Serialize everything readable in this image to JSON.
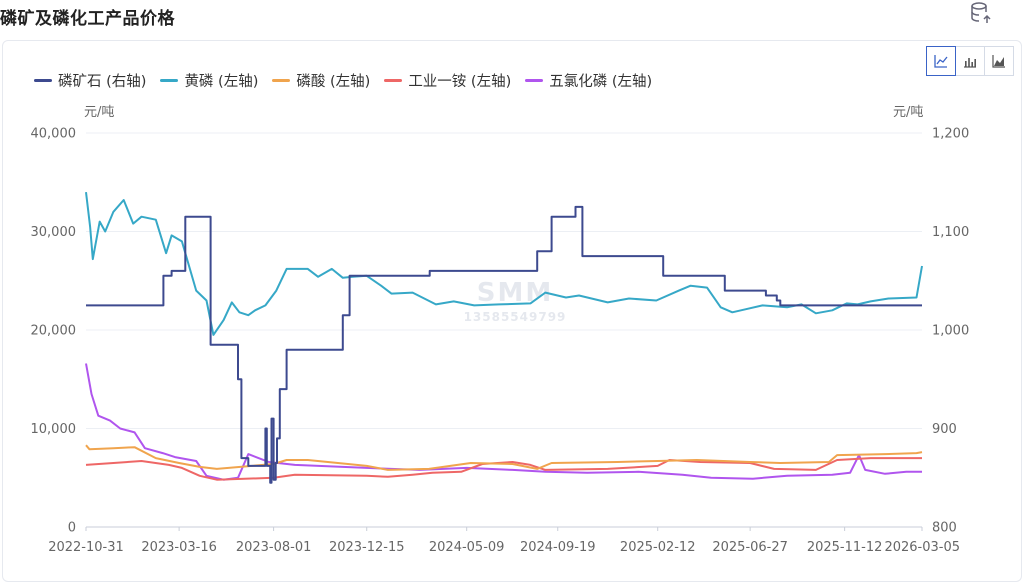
{
  "page": {
    "title": "磷矿及磷化工产品价格"
  },
  "icons": {
    "header": "database-export-icon",
    "view_line": "line-chart-icon",
    "view_bar": "bar-chart-icon",
    "view_area": "area-chart-icon"
  },
  "watermark": {
    "logo": "SMM",
    "number": "13585549799"
  },
  "chart_data": {
    "type": "line",
    "left_unit": "元/吨",
    "right_unit": "元/吨",
    "left_axis": {
      "min": 0,
      "max": 40000,
      "ticks": [
        "0",
        "10,000",
        "20,000",
        "30,000",
        "40,000"
      ]
    },
    "right_axis": {
      "min": 800,
      "max": 1200,
      "ticks": [
        "800",
        "900",
        "1,000",
        "1,100",
        "1,200"
      ]
    },
    "x_range": [
      "2022-10-31",
      "2026-03-05"
    ],
    "x_ticks": [
      "2022-10-31",
      "2023-03-16",
      "2023-08-01",
      "2023-12-15",
      "2024-05-09",
      "2024-09-19",
      "2025-02-12",
      "2025-06-27",
      "2025-11-12",
      "2026-03-05"
    ],
    "grid": true,
    "legend_position": "top-left",
    "series": [
      {
        "name": "磷矿石 (右轴)",
        "axis": "right",
        "color": "#3d4a8f",
        "step": true,
        "points": [
          [
            "2022-10-31",
            1025
          ],
          [
            "2023-02-20",
            1025
          ],
          [
            "2023-02-21",
            1055
          ],
          [
            "2023-03-05",
            1060
          ],
          [
            "2023-03-25",
            1115
          ],
          [
            "2023-05-01",
            985
          ],
          [
            "2023-06-10",
            950
          ],
          [
            "2023-06-15",
            870
          ],
          [
            "2023-06-25",
            862
          ],
          [
            "2023-07-20",
            900
          ],
          [
            "2023-07-22",
            862
          ],
          [
            "2023-07-27",
            845
          ],
          [
            "2023-07-29",
            910
          ],
          [
            "2023-08-01",
            848
          ],
          [
            "2023-08-04",
            865
          ],
          [
            "2023-08-06",
            890
          ],
          [
            "2023-08-10",
            940
          ],
          [
            "2023-08-20",
            980
          ],
          [
            "2023-10-10",
            980
          ],
          [
            "2023-11-10",
            1015
          ],
          [
            "2023-11-20",
            1055
          ],
          [
            "2024-03-15",
            1055
          ],
          [
            "2024-03-16",
            1060
          ],
          [
            "2024-08-10",
            1060
          ],
          [
            "2024-08-20",
            1080
          ],
          [
            "2024-09-10",
            1115
          ],
          [
            "2024-10-15",
            1125
          ],
          [
            "2024-10-25",
            1075
          ],
          [
            "2025-01-10",
            1075
          ],
          [
            "2025-02-20",
            1055
          ],
          [
            "2025-05-20",
            1055
          ],
          [
            "2025-05-21",
            1040
          ],
          [
            "2025-07-05",
            1040
          ],
          [
            "2025-07-20",
            1035
          ],
          [
            "2025-08-05",
            1030
          ],
          [
            "2025-08-10",
            1025
          ],
          [
            "2026-03-05",
            1025
          ]
        ]
      },
      {
        "name": "黄磷 (左轴)",
        "axis": "left",
        "color": "#36a8c7",
        "points": [
          [
            "2022-10-31",
            34000
          ],
          [
            "2022-11-06",
            30500
          ],
          [
            "2022-11-10",
            27200
          ],
          [
            "2022-11-20",
            31000
          ],
          [
            "2022-11-28",
            30000
          ],
          [
            "2022-12-10",
            32000
          ],
          [
            "2022-12-25",
            33200
          ],
          [
            "2023-01-08",
            30800
          ],
          [
            "2023-01-20",
            31500
          ],
          [
            "2023-02-10",
            31200
          ],
          [
            "2023-02-25",
            27800
          ],
          [
            "2023-03-05",
            29600
          ],
          [
            "2023-03-20",
            29000
          ],
          [
            "2023-04-10",
            24000
          ],
          [
            "2023-04-25",
            23000
          ],
          [
            "2023-05-05",
            19500
          ],
          [
            "2023-05-20",
            21000
          ],
          [
            "2023-06-01",
            22800
          ],
          [
            "2023-06-12",
            21800
          ],
          [
            "2023-06-25",
            21500
          ],
          [
            "2023-07-05",
            22000
          ],
          [
            "2023-07-20",
            22500
          ],
          [
            "2023-08-05",
            24000
          ],
          [
            "2023-08-20",
            26200
          ],
          [
            "2023-09-20",
            26200
          ],
          [
            "2023-10-05",
            25400
          ],
          [
            "2023-10-25",
            26200
          ],
          [
            "2023-11-10",
            25300
          ],
          [
            "2023-11-25",
            25400
          ],
          [
            "2023-12-15",
            25500
          ],
          [
            "2024-01-05",
            24500
          ],
          [
            "2024-01-20",
            23700
          ],
          [
            "2024-02-20",
            23800
          ],
          [
            "2024-03-25",
            22600
          ],
          [
            "2024-04-20",
            22900
          ],
          [
            "2024-05-20",
            22500
          ],
          [
            "2024-06-25",
            22600
          ],
          [
            "2024-08-10",
            22700
          ],
          [
            "2024-09-01",
            23800
          ],
          [
            "2024-10-01",
            23300
          ],
          [
            "2024-10-20",
            23500
          ],
          [
            "2024-12-01",
            22800
          ],
          [
            "2025-01-01",
            23200
          ],
          [
            "2025-02-10",
            23000
          ],
          [
            "2025-03-15",
            24000
          ],
          [
            "2025-04-01",
            24500
          ],
          [
            "2025-04-25",
            24300
          ],
          [
            "2025-05-15",
            22300
          ],
          [
            "2025-06-01",
            21800
          ],
          [
            "2025-06-20",
            22100
          ],
          [
            "2025-07-15",
            22500
          ],
          [
            "2025-08-20",
            22300
          ],
          [
            "2025-09-10",
            22600
          ],
          [
            "2025-10-01",
            21700
          ],
          [
            "2025-10-25",
            22000
          ],
          [
            "2025-11-15",
            22700
          ],
          [
            "2025-12-01",
            22600
          ],
          [
            "2025-12-20",
            22900
          ],
          [
            "2026-01-15",
            23200
          ],
          [
            "2026-02-25",
            23300
          ],
          [
            "2026-03-05",
            26500
          ]
        ]
      },
      {
        "name": "磷酸 (左轴)",
        "axis": "left",
        "color": "#f0a44d",
        "points": [
          [
            "2022-10-31",
            8300
          ],
          [
            "2022-11-05",
            7900
          ],
          [
            "2022-12-10",
            8000
          ],
          [
            "2023-01-10",
            8100
          ],
          [
            "2023-02-10",
            7000
          ],
          [
            "2023-03-16",
            6500
          ],
          [
            "2023-04-15",
            6100
          ],
          [
            "2023-05-10",
            5900
          ],
          [
            "2023-08-01",
            6400
          ],
          [
            "2023-08-20",
            6800
          ],
          [
            "2023-09-20",
            6800
          ],
          [
            "2023-12-15",
            6200
          ],
          [
            "2024-01-15",
            5800
          ],
          [
            "2024-03-15",
            5900
          ],
          [
            "2024-04-15",
            6200
          ],
          [
            "2024-05-15",
            6500
          ],
          [
            "2024-07-15",
            6400
          ],
          [
            "2024-08-20",
            5900
          ],
          [
            "2024-09-10",
            6500
          ],
          [
            "2024-12-15",
            6600
          ],
          [
            "2025-02-12",
            6700
          ],
          [
            "2025-04-10",
            6800
          ],
          [
            "2025-06-27",
            6600
          ],
          [
            "2025-08-10",
            6500
          ],
          [
            "2025-10-20",
            6600
          ],
          [
            "2025-11-01",
            7300
          ],
          [
            "2026-01-10",
            7400
          ],
          [
            "2026-02-25",
            7500
          ],
          [
            "2026-03-05",
            7600
          ]
        ]
      },
      {
        "name": "工业一铵 (左轴)",
        "axis": "left",
        "color": "#ee6766",
        "points": [
          [
            "2022-10-31",
            6300
          ],
          [
            "2022-12-10",
            6500
          ],
          [
            "2023-01-20",
            6700
          ],
          [
            "2023-03-01",
            6300
          ],
          [
            "2023-03-20",
            6000
          ],
          [
            "2023-04-15",
            5200
          ],
          [
            "2023-05-10",
            4800
          ],
          [
            "2023-08-01",
            5000
          ],
          [
            "2023-09-01",
            5300
          ],
          [
            "2023-12-15",
            5200
          ],
          [
            "2024-01-15",
            5100
          ],
          [
            "2024-02-20",
            5300
          ],
          [
            "2024-03-20",
            5500
          ],
          [
            "2024-05-01",
            5600
          ],
          [
            "2024-06-01",
            6400
          ],
          [
            "2024-07-15",
            6600
          ],
          [
            "2024-08-10",
            6300
          ],
          [
            "2024-09-01",
            5800
          ],
          [
            "2024-12-01",
            5900
          ],
          [
            "2025-02-12",
            6200
          ],
          [
            "2025-03-01",
            6800
          ],
          [
            "2025-04-15",
            6600
          ],
          [
            "2025-06-27",
            6500
          ],
          [
            "2025-08-01",
            5900
          ],
          [
            "2025-10-01",
            5800
          ],
          [
            "2025-11-01",
            6800
          ],
          [
            "2025-12-20",
            7000
          ],
          [
            "2026-03-05",
            7000
          ]
        ]
      },
      {
        "name": "五氯化磷 (左轴)",
        "axis": "left",
        "color": "#b055ee",
        "points": [
          [
            "2022-10-31",
            16600
          ],
          [
            "2022-11-08",
            13500
          ],
          [
            "2022-11-18",
            11300
          ],
          [
            "2022-12-05",
            10800
          ],
          [
            "2022-12-20",
            10000
          ],
          [
            "2023-01-10",
            9600
          ],
          [
            "2023-01-25",
            8000
          ],
          [
            "2023-02-20",
            7500
          ],
          [
            "2023-03-10",
            7100
          ],
          [
            "2023-04-10",
            6700
          ],
          [
            "2023-04-25",
            5200
          ],
          [
            "2023-05-20",
            4800
          ],
          [
            "2023-06-10",
            5000
          ],
          [
            "2023-06-25",
            7400
          ],
          [
            "2023-07-10",
            7000
          ],
          [
            "2023-07-25",
            6600
          ],
          [
            "2023-09-01",
            6300
          ],
          [
            "2023-12-15",
            6000
          ],
          [
            "2024-01-20",
            5900
          ],
          [
            "2024-03-01",
            5800
          ],
          [
            "2024-05-09",
            6000
          ],
          [
            "2024-07-15",
            5800
          ],
          [
            "2024-09-01",
            5600
          ],
          [
            "2024-11-01",
            5500
          ],
          [
            "2025-01-15",
            5600
          ],
          [
            "2025-03-20",
            5300
          ],
          [
            "2025-05-01",
            5000
          ],
          [
            "2025-07-01",
            4900
          ],
          [
            "2025-08-20",
            5200
          ],
          [
            "2025-10-25",
            5300
          ],
          [
            "2025-11-20",
            5500
          ],
          [
            "2025-12-03",
            7300
          ],
          [
            "2025-12-12",
            5800
          ],
          [
            "2026-01-10",
            5400
          ],
          [
            "2026-02-10",
            5600
          ],
          [
            "2026-03-05",
            5600
          ]
        ]
      }
    ]
  }
}
